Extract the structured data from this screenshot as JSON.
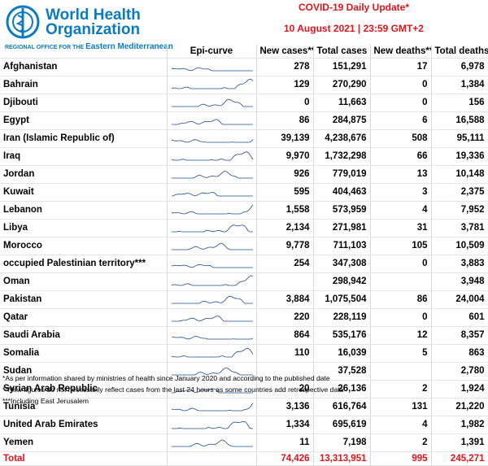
{
  "header": {
    "org_line1": "World Health",
    "org_line2": "Organization",
    "region_small": "REGIONAL OFFICE FOR THE",
    "region": "Eastern Mediterranean",
    "title": "COVID-19 Daily Update*",
    "date": "10 August 2021 | 23:59 GMT+2"
  },
  "table": {
    "columns": [
      "Epi-curve",
      "New cases**",
      "Total cases",
      "New deaths**",
      "Total  deaths"
    ],
    "rows": [
      [
        "Afghanistan",
        "278",
        "151,291",
        "17",
        "6,978"
      ],
      [
        "Bahrain",
        "129",
        "270,290",
        "0",
        "1,384"
      ],
      [
        "Djibouti",
        "0",
        "11,663",
        "0",
        "156"
      ],
      [
        "Egypt",
        "86",
        "284,875",
        "6",
        "16,588"
      ],
      [
        "Iran (Islamic Republic of)",
        "39,139",
        "4,238,676",
        "508",
        "95,111"
      ],
      [
        "Iraq",
        "9,970",
        "1,732,298",
        "66",
        "19,336"
      ],
      [
        "Jordan",
        "926",
        "779,019",
        "13",
        "10,148"
      ],
      [
        "Kuwait",
        "595",
        "404,463",
        "3",
        "2,375"
      ],
      [
        "Lebanon",
        "1,558",
        "573,959",
        "4",
        "7,952"
      ],
      [
        "Libya",
        "2,134",
        "271,981",
        "31",
        "3,781"
      ],
      [
        "Morocco",
        "9,778",
        "711,103",
        "105",
        "10,509"
      ],
      [
        "occupied Palestinian territory***",
        "254",
        "347,308",
        "0",
        "3,883"
      ],
      [
        "Oman",
        null,
        "298,942",
        null,
        "3,948"
      ],
      [
        "Pakistan",
        "3,884",
        "1,075,504",
        "86",
        "24,004"
      ],
      [
        "Qatar",
        "220",
        "228,119",
        "0",
        "601"
      ],
      [
        "Saudi Arabia",
        "864",
        "535,176",
        "12",
        "8,357"
      ],
      [
        "Somalia",
        "110",
        "16,039",
        "5",
        "863"
      ],
      [
        "Sudan",
        null,
        "37,528",
        null,
        "2,780"
      ],
      [
        "Syrian Arab Republic",
        "20",
        "26,136",
        "2",
        "1,924"
      ],
      [
        "Tunisia",
        "3,136",
        "616,764",
        "131",
        "21,220"
      ],
      [
        "United Arab Emirates",
        "1,334",
        "695,619",
        "4",
        "1,982"
      ],
      [
        "Yemen",
        "11",
        "7,198",
        "2",
        "1,391"
      ]
    ],
    "total": [
      "Total",
      "74,426",
      "13,313,951",
      "995",
      "245,271"
    ]
  },
  "footnotes": [
    "*As per information shared by ministries of health since January 2020 and according to the published date",
    "**New figures do not necessarily reflect cases from the last 24 hours as some countries add retrospective data",
    "***Including East Jerusalem"
  ]
}
